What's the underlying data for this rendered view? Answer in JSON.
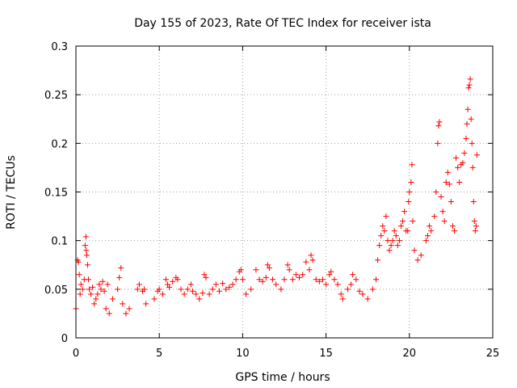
{
  "chart_data": {
    "type": "scatter",
    "title": "Day 155 of 2023, Rate Of TEC Index for receiver ista",
    "xlabel": "GPS time / hours",
    "ylabel": "ROTI / TECUs",
    "xlim": [
      0,
      25
    ],
    "ylim": [
      0,
      0.3
    ],
    "x_ticks": [
      0,
      5,
      10,
      15,
      20,
      25
    ],
    "x_tick_labels": [
      "0",
      "5",
      "10",
      "15",
      "20",
      "25"
    ],
    "y_ticks": [
      0,
      0.05,
      0.1,
      0.15,
      0.2,
      0.25,
      0.3
    ],
    "y_tick_labels": [
      "0",
      "0.05",
      "0.1",
      "0.15",
      "0.2",
      "0.25",
      "0.3"
    ],
    "grid": true,
    "marker": "+",
    "marker_color": "#ff0000",
    "series": [
      {
        "points": [
          [
            0.0,
            0.03
          ],
          [
            0.1,
            0.08
          ],
          [
            0.15,
            0.078
          ],
          [
            0.2,
            0.065
          ],
          [
            0.25,
            0.045
          ],
          [
            0.3,
            0.055
          ],
          [
            0.4,
            0.05
          ],
          [
            0.5,
            0.06
          ],
          [
            0.55,
            0.095
          ],
          [
            0.6,
            0.104
          ],
          [
            0.62,
            0.09
          ],
          [
            0.65,
            0.085
          ],
          [
            0.7,
            0.075
          ],
          [
            0.75,
            0.06
          ],
          [
            0.8,
            0.05
          ],
          [
            0.9,
            0.045
          ],
          [
            1.0,
            0.052
          ],
          [
            1.1,
            0.035
          ],
          [
            1.2,
            0.04
          ],
          [
            1.3,
            0.045
          ],
          [
            1.4,
            0.055
          ],
          [
            1.5,
            0.05
          ],
          [
            1.6,
            0.058
          ],
          [
            1.7,
            0.048
          ],
          [
            1.8,
            0.03
          ],
          [
            1.9,
            0.055
          ],
          [
            2.0,
            0.025
          ],
          [
            2.2,
            0.04
          ],
          [
            2.5,
            0.05
          ],
          [
            2.6,
            0.062
          ],
          [
            2.7,
            0.072
          ],
          [
            2.8,
            0.035
          ],
          [
            3.0,
            0.025
          ],
          [
            3.2,
            0.03
          ],
          [
            3.7,
            0.05
          ],
          [
            3.8,
            0.055
          ],
          [
            4.0,
            0.048
          ],
          [
            4.1,
            0.05
          ],
          [
            4.2,
            0.035
          ],
          [
            4.7,
            0.04
          ],
          [
            4.9,
            0.048
          ],
          [
            5.0,
            0.05
          ],
          [
            5.2,
            0.045
          ],
          [
            5.4,
            0.06
          ],
          [
            5.5,
            0.055
          ],
          [
            5.6,
            0.052
          ],
          [
            5.8,
            0.058
          ],
          [
            6.0,
            0.062
          ],
          [
            6.1,
            0.06
          ],
          [
            6.3,
            0.05
          ],
          [
            6.5,
            0.045
          ],
          [
            6.7,
            0.05
          ],
          [
            6.9,
            0.055
          ],
          [
            7.0,
            0.048
          ],
          [
            7.2,
            0.045
          ],
          [
            7.4,
            0.04
          ],
          [
            7.6,
            0.046
          ],
          [
            7.7,
            0.065
          ],
          [
            7.8,
            0.062
          ],
          [
            8.0,
            0.045
          ],
          [
            8.2,
            0.05
          ],
          [
            8.4,
            0.055
          ],
          [
            8.6,
            0.048
          ],
          [
            8.8,
            0.056
          ],
          [
            9.0,
            0.05
          ],
          [
            9.2,
            0.052
          ],
          [
            9.4,
            0.055
          ],
          [
            9.6,
            0.06
          ],
          [
            9.8,
            0.068
          ],
          [
            9.9,
            0.07
          ],
          [
            10.0,
            0.06
          ],
          [
            10.2,
            0.045
          ],
          [
            10.5,
            0.05
          ],
          [
            10.8,
            0.07
          ],
          [
            11.0,
            0.06
          ],
          [
            11.2,
            0.058
          ],
          [
            11.4,
            0.062
          ],
          [
            11.5,
            0.075
          ],
          [
            11.6,
            0.072
          ],
          [
            11.8,
            0.06
          ],
          [
            12.0,
            0.055
          ],
          [
            12.3,
            0.05
          ],
          [
            12.5,
            0.06
          ],
          [
            12.7,
            0.075
          ],
          [
            12.8,
            0.07
          ],
          [
            13.0,
            0.06
          ],
          [
            13.2,
            0.065
          ],
          [
            13.4,
            0.062
          ],
          [
            13.6,
            0.065
          ],
          [
            13.8,
            0.078
          ],
          [
            14.0,
            0.07
          ],
          [
            14.1,
            0.085
          ],
          [
            14.2,
            0.08
          ],
          [
            14.4,
            0.06
          ],
          [
            14.6,
            0.058
          ],
          [
            14.8,
            0.06
          ],
          [
            15.0,
            0.055
          ],
          [
            15.2,
            0.065
          ],
          [
            15.3,
            0.068
          ],
          [
            15.5,
            0.06
          ],
          [
            15.7,
            0.055
          ],
          [
            15.9,
            0.045
          ],
          [
            16.0,
            0.04
          ],
          [
            16.3,
            0.05
          ],
          [
            16.5,
            0.055
          ],
          [
            16.6,
            0.065
          ],
          [
            16.8,
            0.06
          ],
          [
            17.0,
            0.048
          ],
          [
            17.2,
            0.045
          ],
          [
            17.5,
            0.04
          ],
          [
            17.8,
            0.05
          ],
          [
            18.0,
            0.06
          ],
          [
            18.1,
            0.08
          ],
          [
            18.2,
            0.095
          ],
          [
            18.3,
            0.105
          ],
          [
            18.4,
            0.115
          ],
          [
            18.5,
            0.11
          ],
          [
            18.6,
            0.125
          ],
          [
            18.7,
            0.1
          ],
          [
            18.8,
            0.09
          ],
          [
            18.9,
            0.095
          ],
          [
            19.0,
            0.1
          ],
          [
            19.1,
            0.11
          ],
          [
            19.2,
            0.105
          ],
          [
            19.3,
            0.095
          ],
          [
            19.4,
            0.1
          ],
          [
            19.5,
            0.115
          ],
          [
            19.6,
            0.12
          ],
          [
            19.7,
            0.13
          ],
          [
            19.8,
            0.11
          ],
          [
            19.9,
            0.11
          ],
          [
            19.95,
            0.14
          ],
          [
            20.0,
            0.15
          ],
          [
            20.1,
            0.16
          ],
          [
            20.15,
            0.178
          ],
          [
            20.2,
            0.12
          ],
          [
            20.3,
            0.09
          ],
          [
            20.5,
            0.08
          ],
          [
            20.7,
            0.085
          ],
          [
            21.0,
            0.1
          ],
          [
            21.1,
            0.105
          ],
          [
            21.2,
            0.115
          ],
          [
            21.3,
            0.11
          ],
          [
            21.5,
            0.125
          ],
          [
            21.6,
            0.15
          ],
          [
            21.7,
            0.2
          ],
          [
            21.75,
            0.218
          ],
          [
            21.8,
            0.222
          ],
          [
            21.9,
            0.145
          ],
          [
            22.0,
            0.13
          ],
          [
            22.1,
            0.12
          ],
          [
            22.2,
            0.16
          ],
          [
            22.3,
            0.17
          ],
          [
            22.4,
            0.158
          ],
          [
            22.5,
            0.14
          ],
          [
            22.6,
            0.115
          ],
          [
            22.7,
            0.11
          ],
          [
            22.8,
            0.185
          ],
          [
            22.9,
            0.175
          ],
          [
            23.0,
            0.16
          ],
          [
            23.1,
            0.178
          ],
          [
            23.2,
            0.18
          ],
          [
            23.3,
            0.19
          ],
          [
            23.4,
            0.205
          ],
          [
            23.45,
            0.22
          ],
          [
            23.5,
            0.235
          ],
          [
            23.55,
            0.257
          ],
          [
            23.6,
            0.26
          ],
          [
            23.65,
            0.266
          ],
          [
            23.7,
            0.225
          ],
          [
            23.75,
            0.2
          ],
          [
            23.8,
            0.175
          ],
          [
            23.85,
            0.14
          ],
          [
            23.9,
            0.12
          ],
          [
            23.95,
            0.11
          ],
          [
            24.0,
            0.115
          ],
          [
            24.05,
            0.188
          ]
        ]
      }
    ]
  }
}
